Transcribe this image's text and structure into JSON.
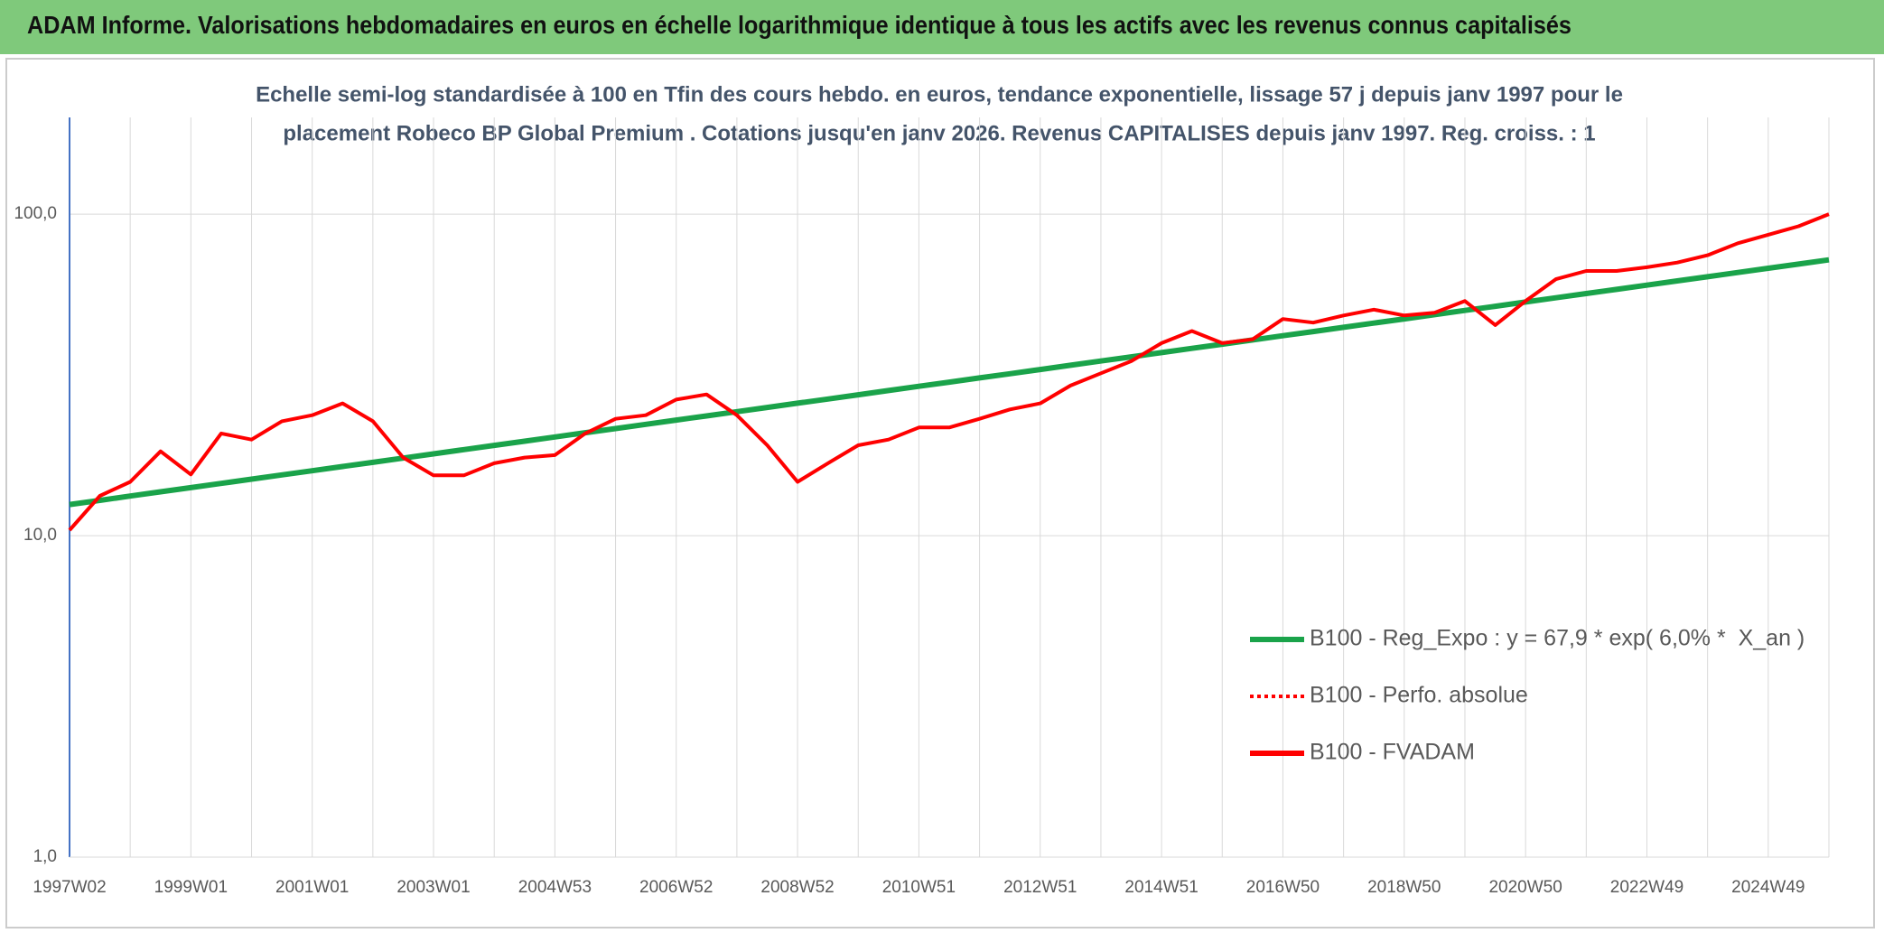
{
  "header": {
    "title": "ADAM Informe. Valorisations hebdomadaires en euros en échelle logarithmique identique à tous les actifs avec les revenus connus capitalisés"
  },
  "chart_data": {
    "type": "line",
    "subtitle": [
      "Echelle semi-log standardisée à 100 en Tfin des cours hebdo. en euros, tendance exponentielle, lissage 57 j depuis janv 1997 pour le",
      "placement Robeco BP Global Premium . Cotations jusqu'en janv 2026. Revenus CAPITALISES depuis janv 1997. Reg. croiss. : 1"
    ],
    "categories": [
      "1997W02",
      null,
      null,
      null,
      "1999W01",
      null,
      null,
      null,
      "2001W01",
      null,
      null,
      null,
      "2003W01",
      null,
      null,
      null,
      "2004W53",
      null,
      null,
      null,
      "2006W52",
      null,
      null,
      null,
      "2008W52",
      null,
      null,
      null,
      "2010W51",
      null,
      null,
      null,
      "2012W51",
      null,
      null,
      null,
      "2014W51",
      null,
      null,
      null,
      "2016W50",
      null,
      null,
      null,
      "2018W50",
      null,
      null,
      null,
      "2020W50",
      null,
      null,
      null,
      "2022W49",
      null,
      null,
      null,
      "2024W49",
      null,
      null
    ],
    "series": [
      {
        "name": "B100 - Reg_Expo : y = 67,9 * exp( 6,0% *  X_an )",
        "color": "#1aa34a",
        "style": "solid",
        "values": [
          12.5,
          12.88,
          13.28,
          13.69,
          14.11,
          14.54,
          14.99,
          15.45,
          15.92,
          16.41,
          16.91,
          17.43,
          17.97,
          18.52,
          19.09,
          19.67,
          20.28,
          20.9,
          21.54,
          22.2,
          22.88,
          23.58,
          24.3,
          25.05,
          25.82,
          26.61,
          27.43,
          28.27,
          29.14,
          30.03,
          30.95,
          31.9,
          32.88,
          33.89,
          34.93,
          36.0,
          37.1,
          38.24,
          39.41,
          40.62,
          41.87,
          43.15,
          44.47,
          45.84,
          47.24,
          48.69,
          50.18,
          51.72,
          53.31,
          54.95,
          56.63,
          58.37,
          60.16,
          62.0,
          63.9,
          65.86,
          67.88,
          69.96,
          72.11
        ]
      },
      {
        "name": "B100 - Perfo. absolue",
        "color": "#ff0000",
        "style": "dotted",
        "values": [
          null,
          null,
          null,
          null,
          null,
          null,
          null,
          null,
          null,
          null,
          null,
          null,
          null,
          null,
          null,
          null,
          null,
          null,
          null,
          null,
          null,
          null,
          null,
          null,
          null,
          null,
          null,
          null,
          null,
          null,
          null,
          null,
          null,
          null,
          null,
          null,
          null,
          null,
          null,
          null,
          null,
          null,
          null,
          null,
          null,
          null,
          null,
          null,
          null,
          null,
          null,
          null,
          null,
          null,
          null,
          null,
          null,
          null,
          null
        ]
      },
      {
        "name": "B100 - FVADAM",
        "color": "#ff0000",
        "style": "solid",
        "values": [
          10.4,
          13.3,
          14.7,
          18.3,
          15.5,
          20.8,
          19.9,
          22.7,
          23.7,
          25.8,
          22.7,
          17.5,
          15.4,
          15.4,
          16.8,
          17.5,
          17.8,
          20.8,
          23.1,
          23.7,
          26.5,
          27.5,
          23.7,
          19.1,
          14.7,
          16.8,
          19.1,
          19.9,
          21.7,
          21.7,
          23.1,
          24.7,
          25.8,
          29.3,
          32.0,
          34.9,
          39.7,
          43.3,
          39.7,
          40.8,
          47.2,
          46.0,
          48.4,
          50.5,
          48.4,
          49.4,
          53.7,
          45.2,
          53.7,
          62.8,
          66.6,
          66.6,
          68.4,
          70.7,
          74.5,
          81.2,
          86.3,
          91.7,
          100
        ]
      }
    ],
    "log_scale": true,
    "ylim": [
      1,
      200
    ],
    "yticks": [
      {
        "value": 1,
        "label": "1,0"
      },
      {
        "value": 10,
        "label": "10,0"
      },
      {
        "value": 100,
        "label": "100,0"
      }
    ],
    "grid": true,
    "legend": "right"
  }
}
